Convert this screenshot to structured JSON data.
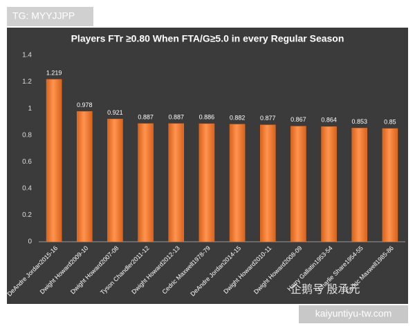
{
  "chart_data": {
    "type": "bar",
    "title": "Players FTr ≥0.80 When FTA/G≥5.0 in every Regular Season",
    "categories": [
      "DeAndre Jordan2015-16",
      "Dwight Howard2009-10",
      "Dwight Howard2007-08",
      "Tyson Chandler2011-12",
      "Dwight Howard2012-13",
      "Cedric Maxwell1978-79",
      "DeAndre Jordan2014-15",
      "Dwight Howard2010-11",
      "Dwight Howard2008-09",
      "Harry Gallatin1953-54",
      "Charlie Share1954-55",
      "Cedric Maxwell1985-86"
    ],
    "values": [
      1.219,
      0.978,
      0.921,
      0.887,
      0.887,
      0.886,
      0.882,
      0.877,
      0.867,
      0.864,
      0.853,
      0.85
    ],
    "color": "#f0782a",
    "ylim": [
      0,
      1.4
    ],
    "yticks": [
      0,
      0.2,
      0.4,
      0.6,
      0.8,
      1,
      1.2,
      1.4
    ],
    "grid": false
  },
  "overlays": {
    "tag": "TG: MYYJJPP",
    "site": "kaiyuntiyu-tw.com",
    "watermark": "企鹅号 殷承元"
  }
}
